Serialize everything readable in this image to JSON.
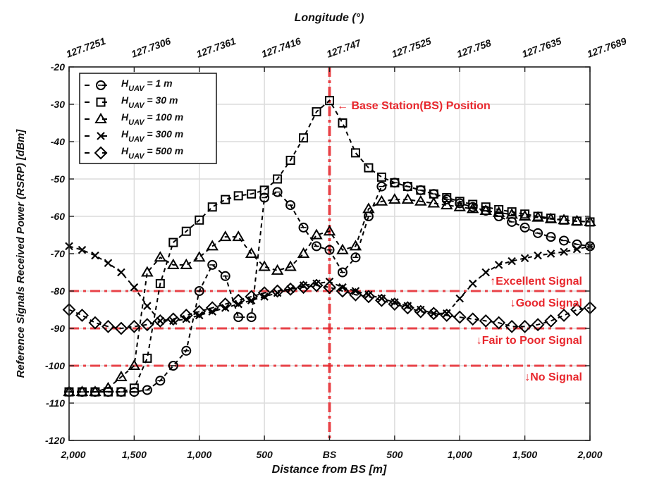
{
  "chart_data": {
    "type": "line",
    "title": "",
    "xlabel": "Distance from BS [m]",
    "ylabel": "Reference Signals Received Power (RSRP) [dBm]",
    "top_xlabel": "Longitude (°)",
    "xlim": [
      -2000,
      2000
    ],
    "ylim": [
      -120,
      -20
    ],
    "grid": true,
    "legend_position": "top-left",
    "x_ticks": [
      -2000,
      -1500,
      -1000,
      -500,
      0,
      500,
      1000,
      1500,
      2000
    ],
    "x_tick_labels": [
      "2,000",
      "1,500",
      "1,000",
      "500",
      "BS",
      "500",
      "1,000",
      "1,500",
      "2,000"
    ],
    "top_tick_labels": [
      "127.7251",
      "127.7306",
      "127.7361",
      "127.7416",
      "127.747",
      "127.7525",
      "127.758",
      "127.7635",
      "127.7689"
    ],
    "y_ticks": [
      -20,
      -30,
      -40,
      -50,
      -60,
      -70,
      -80,
      -90,
      -100,
      -110,
      -120
    ],
    "x": [
      -2000,
      -1900,
      -1800,
      -1700,
      -1600,
      -1500,
      -1400,
      -1300,
      -1200,
      -1100,
      -1000,
      -900,
      -800,
      -700,
      -600,
      -500,
      -400,
      -300,
      -200,
      -100,
      0,
      100,
      200,
      300,
      400,
      500,
      600,
      700,
      800,
      900,
      1000,
      1100,
      1200,
      1300,
      1400,
      1500,
      1600,
      1700,
      1800,
      1900,
      2000
    ],
    "series": [
      {
        "name": "H",
        "sub": "UAV",
        "suffix": " = 1 m",
        "marker": "circle",
        "values": [
          -107,
          -107,
          -107,
          -107,
          -107,
          -107,
          -106.5,
          -104,
          -100,
          -96,
          -80,
          -73,
          -76,
          -87,
          -87,
          -55,
          -53.5,
          -57,
          -63,
          -68,
          -69,
          -75,
          -71,
          -60,
          -52,
          -51,
          -52,
          -53,
          -54,
          -55.5,
          -56.5,
          -57.5,
          -58.5,
          -60,
          -61.5,
          -63,
          -64.5,
          -65.5,
          -66.5,
          -67.5,
          -68
        ]
      },
      {
        "name": "H",
        "sub": "UAV",
        "suffix": " = 30 m",
        "marker": "square",
        "values": [
          -107,
          -107,
          -107,
          -107,
          -107,
          -106,
          -98,
          -78,
          -67,
          -64,
          -61,
          -57.5,
          -55.5,
          -54.5,
          -54,
          -53,
          -50,
          -45,
          -39,
          -32,
          -29,
          -35,
          -43,
          -47,
          -49.5,
          -51,
          -52,
          -53,
          -54,
          -55,
          -56,
          -56.8,
          -57.5,
          -58.2,
          -58.8,
          -59.4,
          -60,
          -60.5,
          -61,
          -61.3,
          -61.5
        ]
      },
      {
        "name": "H",
        "sub": "UAV",
        "suffix": " = 100 m",
        "marker": "triangle",
        "values": [
          -107,
          -107,
          -107,
          -106,
          -103,
          -100,
          -75,
          -71,
          -73,
          -73,
          -71,
          -68,
          -65.5,
          -65.5,
          -70,
          -73.5,
          -74.5,
          -73.5,
          -70,
          -65,
          -64,
          -69,
          -68,
          -58,
          -56,
          -55.5,
          -55.5,
          -56,
          -56.5,
          -57,
          -57.5,
          -58,
          -58.5,
          -59,
          -59.5,
          -60,
          -60.3,
          -60.7,
          -61,
          -61.3,
          -61.5
        ]
      },
      {
        "name": "H",
        "sub": "UAV",
        "suffix": " = 300 m",
        "marker": "x",
        "values": [
          -68,
          -69,
          -70.5,
          -72.5,
          -75,
          -79,
          -84,
          -88,
          -88,
          -87.5,
          -86.5,
          -85.5,
          -84.5,
          -83.5,
          -82.5,
          -81.5,
          -80.5,
          -79.5,
          -78.5,
          -78,
          -77.5,
          -79,
          -80,
          -81,
          -82,
          -83,
          -84,
          -85,
          -86,
          -86,
          -82,
          -78,
          -75,
          -73,
          -72,
          -71.2,
          -70.5,
          -70,
          -69.5,
          -68.8,
          -68
        ]
      },
      {
        "name": "H",
        "sub": "UAV",
        "suffix": " = 500 m",
        "marker": "diamond",
        "values": [
          -85,
          -86.5,
          -88.5,
          -89.5,
          -90,
          -89.5,
          -89,
          -88,
          -87.5,
          -86.5,
          -85.5,
          -84.5,
          -83.5,
          -82.5,
          -81.5,
          -80.5,
          -80,
          -79.5,
          -79,
          -78.5,
          -79,
          -80,
          -81,
          -81.5,
          -82.5,
          -83.5,
          -84.5,
          -85.5,
          -86,
          -86.5,
          -87,
          -87.5,
          -88,
          -88.5,
          -89.5,
          -89.5,
          -89,
          -88,
          -86.5,
          -85,
          -84.5
        ]
      }
    ],
    "thresholds": [
      {
        "y": -80,
        "label_above": "↑Excellent Signal",
        "label_below": "↓Good Signal"
      },
      {
        "y": -90,
        "label_below": "↓Fair to Poor Signal"
      },
      {
        "y": -100,
        "label_below": "↓No Signal"
      }
    ],
    "bs_annotation": "← Base Station(BS) Position",
    "colors": {
      "threshold": "#e8272d",
      "series": "#000000",
      "grid": "#dcdcdc"
    }
  }
}
